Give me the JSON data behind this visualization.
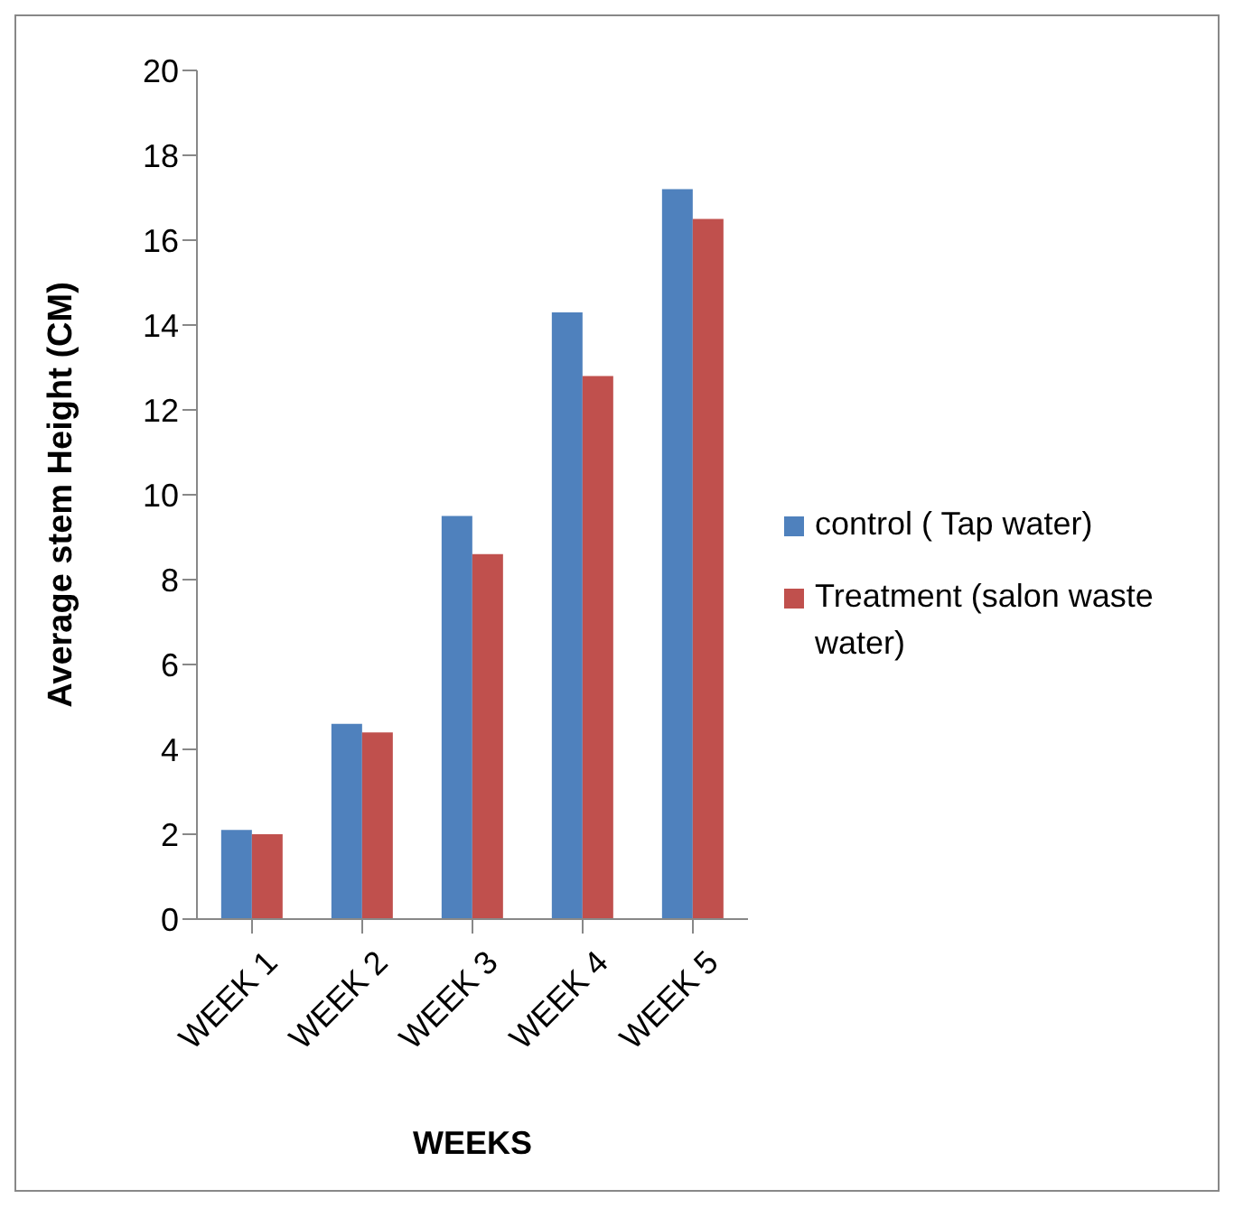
{
  "chart_data": {
    "type": "bar",
    "xlabel": "WEEKS",
    "ylabel": "Average stem Height (CM)",
    "categories": [
      "WEEK 1",
      "WEEK 2",
      "WEEK 3",
      "WEEK 4",
      "WEEK 5"
    ],
    "series": [
      {
        "name": "control ( Tap water)",
        "color": "#4f81bd",
        "values": [
          2.1,
          4.6,
          9.5,
          14.3,
          17.2
        ]
      },
      {
        "name": "Treatment (salon waste water)",
        "color": "#c0504d",
        "values": [
          2.0,
          4.4,
          8.6,
          12.8,
          16.5
        ]
      }
    ],
    "ylim": [
      0,
      20
    ],
    "yticks": [
      0,
      2,
      4,
      6,
      8,
      10,
      12,
      14,
      16,
      18,
      20
    ],
    "grid": false,
    "legend": "right"
  }
}
